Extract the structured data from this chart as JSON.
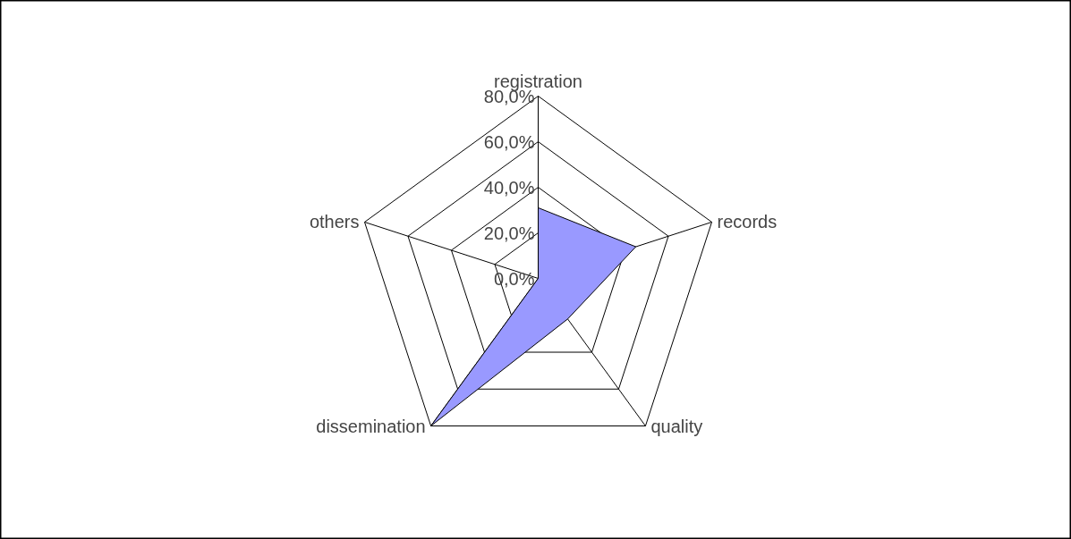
{
  "chart_data": {
    "type": "radar",
    "categories": [
      "registration",
      "records",
      "quality",
      "dissemination",
      "others"
    ],
    "series": [
      {
        "color": "#9999ff",
        "values": [
          31,
          45,
          22,
          80,
          0
        ]
      }
    ],
    "ylim": [
      0,
      80
    ],
    "yticks": [
      {
        "value": 0,
        "label": "0,0%"
      },
      {
        "value": 20,
        "label": "20,0%"
      },
      {
        "value": 40,
        "label": "40,0%"
      },
      {
        "value": 60,
        "label": "60,0%"
      },
      {
        "value": 80,
        "label": "80,0%"
      }
    ],
    "grid": true
  }
}
